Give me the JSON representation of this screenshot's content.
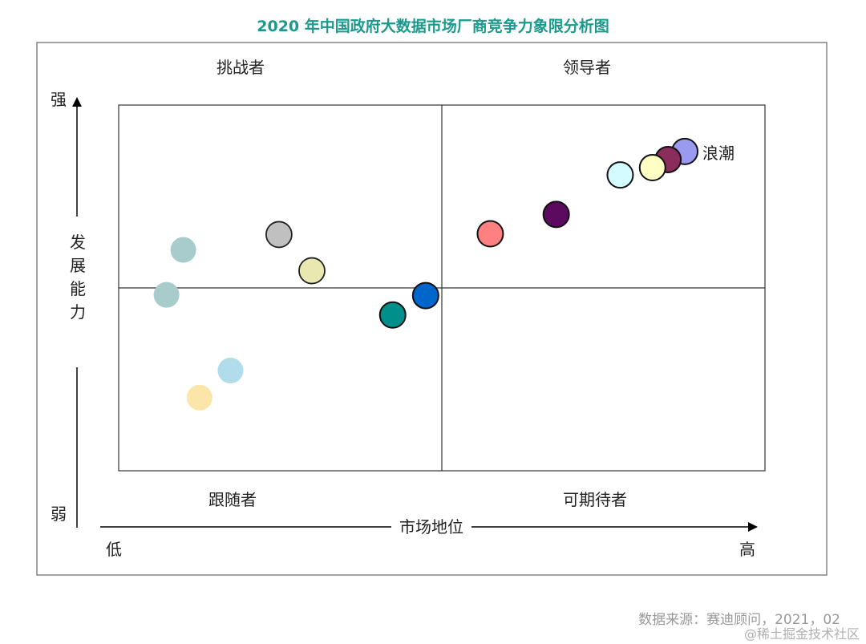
{
  "chart_data": {
    "type": "scatter",
    "title": "2020 年中国政府大数据市场厂商竞争力象限分析图",
    "xlabel": "市场地位",
    "ylabel": "发展能力",
    "x_low_label": "低",
    "x_high_label": "高",
    "y_high_label": "强",
    "y_low_label": "弱",
    "xlim": [
      0,
      100
    ],
    "ylim": [
      0,
      100
    ],
    "quadrant_divider": {
      "x": 50,
      "y": 50
    },
    "quadrants": {
      "top_left": "挑战者",
      "top_right": "领导者",
      "bottom_left": "跟随者",
      "bottom_right": "可期待者"
    },
    "points": [
      {
        "x": 87.6,
        "y": 87.3,
        "color": "#9a9af0",
        "label": "浪潮"
      },
      {
        "x": 85.0,
        "y": 85.1,
        "color": "#8b2d5c",
        "label": ""
      },
      {
        "x": 82.6,
        "y": 82.9,
        "color": "#ffffc4",
        "label": ""
      },
      {
        "x": 77.6,
        "y": 80.9,
        "color": "#d4fbff",
        "label": ""
      },
      {
        "x": 67.7,
        "y": 70.1,
        "color": "#5b0a5f",
        "label": ""
      },
      {
        "x": 57.5,
        "y": 64.8,
        "color": "#ff8080",
        "label": ""
      },
      {
        "x": 47.5,
        "y": 47.9,
        "color": "#0066cc",
        "label": ""
      },
      {
        "x": 42.4,
        "y": 42.6,
        "color": "#008f8a",
        "label": ""
      },
      {
        "x": 29.9,
        "y": 54.7,
        "color": "#e8e8b0",
        "label": ""
      },
      {
        "x": 24.8,
        "y": 64.6,
        "color": "#c0c0c0",
        "label": ""
      },
      {
        "x": 10.0,
        "y": 60.4,
        "color": "#a8cccc",
        "label": ""
      },
      {
        "x": 7.4,
        "y": 48.1,
        "color": "#a8cccc",
        "label": ""
      },
      {
        "x": 17.3,
        "y": 27.4,
        "color": "#b0dcec",
        "label": ""
      },
      {
        "x": 12.5,
        "y": 20.0,
        "color": "#fce5a8",
        "label": ""
      }
    ],
    "source": "数据来源：赛迪顾问，2021，02"
  },
  "watermark": "@稀土掘金技术社区"
}
